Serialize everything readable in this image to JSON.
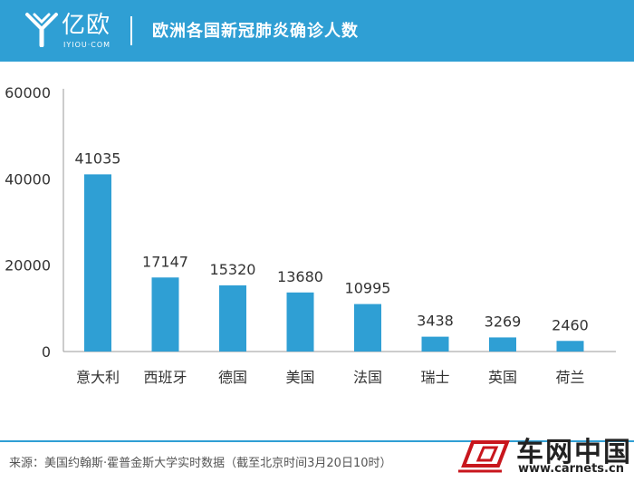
{
  "header": {
    "logo_text": "亿欧",
    "logo_sub": "IYIOU·COM",
    "title": "欧洲各国新冠肺炎确诊人数"
  },
  "colors": {
    "header_bg": "#2f9fd4",
    "bar": "#2f9fd4",
    "axis": "#999999"
  },
  "chart_data": {
    "type": "bar",
    "categories": [
      "意大利",
      "西班牙",
      "德国",
      "美国",
      "法国",
      "瑞士",
      "英国",
      "荷兰"
    ],
    "values": [
      41035,
      17147,
      15320,
      13680,
      10995,
      3438,
      3269,
      2460
    ],
    "value_labels": [
      "41035",
      "17147",
      "15320",
      "13680",
      "10995",
      "3438",
      "3269",
      "2460"
    ],
    "yticks": [
      0,
      20000,
      40000,
      60000
    ],
    "ytick_labels": [
      "0",
      "20000",
      "40000",
      "60000"
    ],
    "ylim": [
      0,
      60000
    ],
    "grid": false,
    "title": "",
    "xlabel": "",
    "ylabel": ""
  },
  "footer": {
    "source": "来源：美国约翰斯·霍普金斯大学实时数据（截至北京时间3月20日10时）",
    "watermark_name": "车网中国",
    "watermark_url": "www.carnets.cn"
  }
}
